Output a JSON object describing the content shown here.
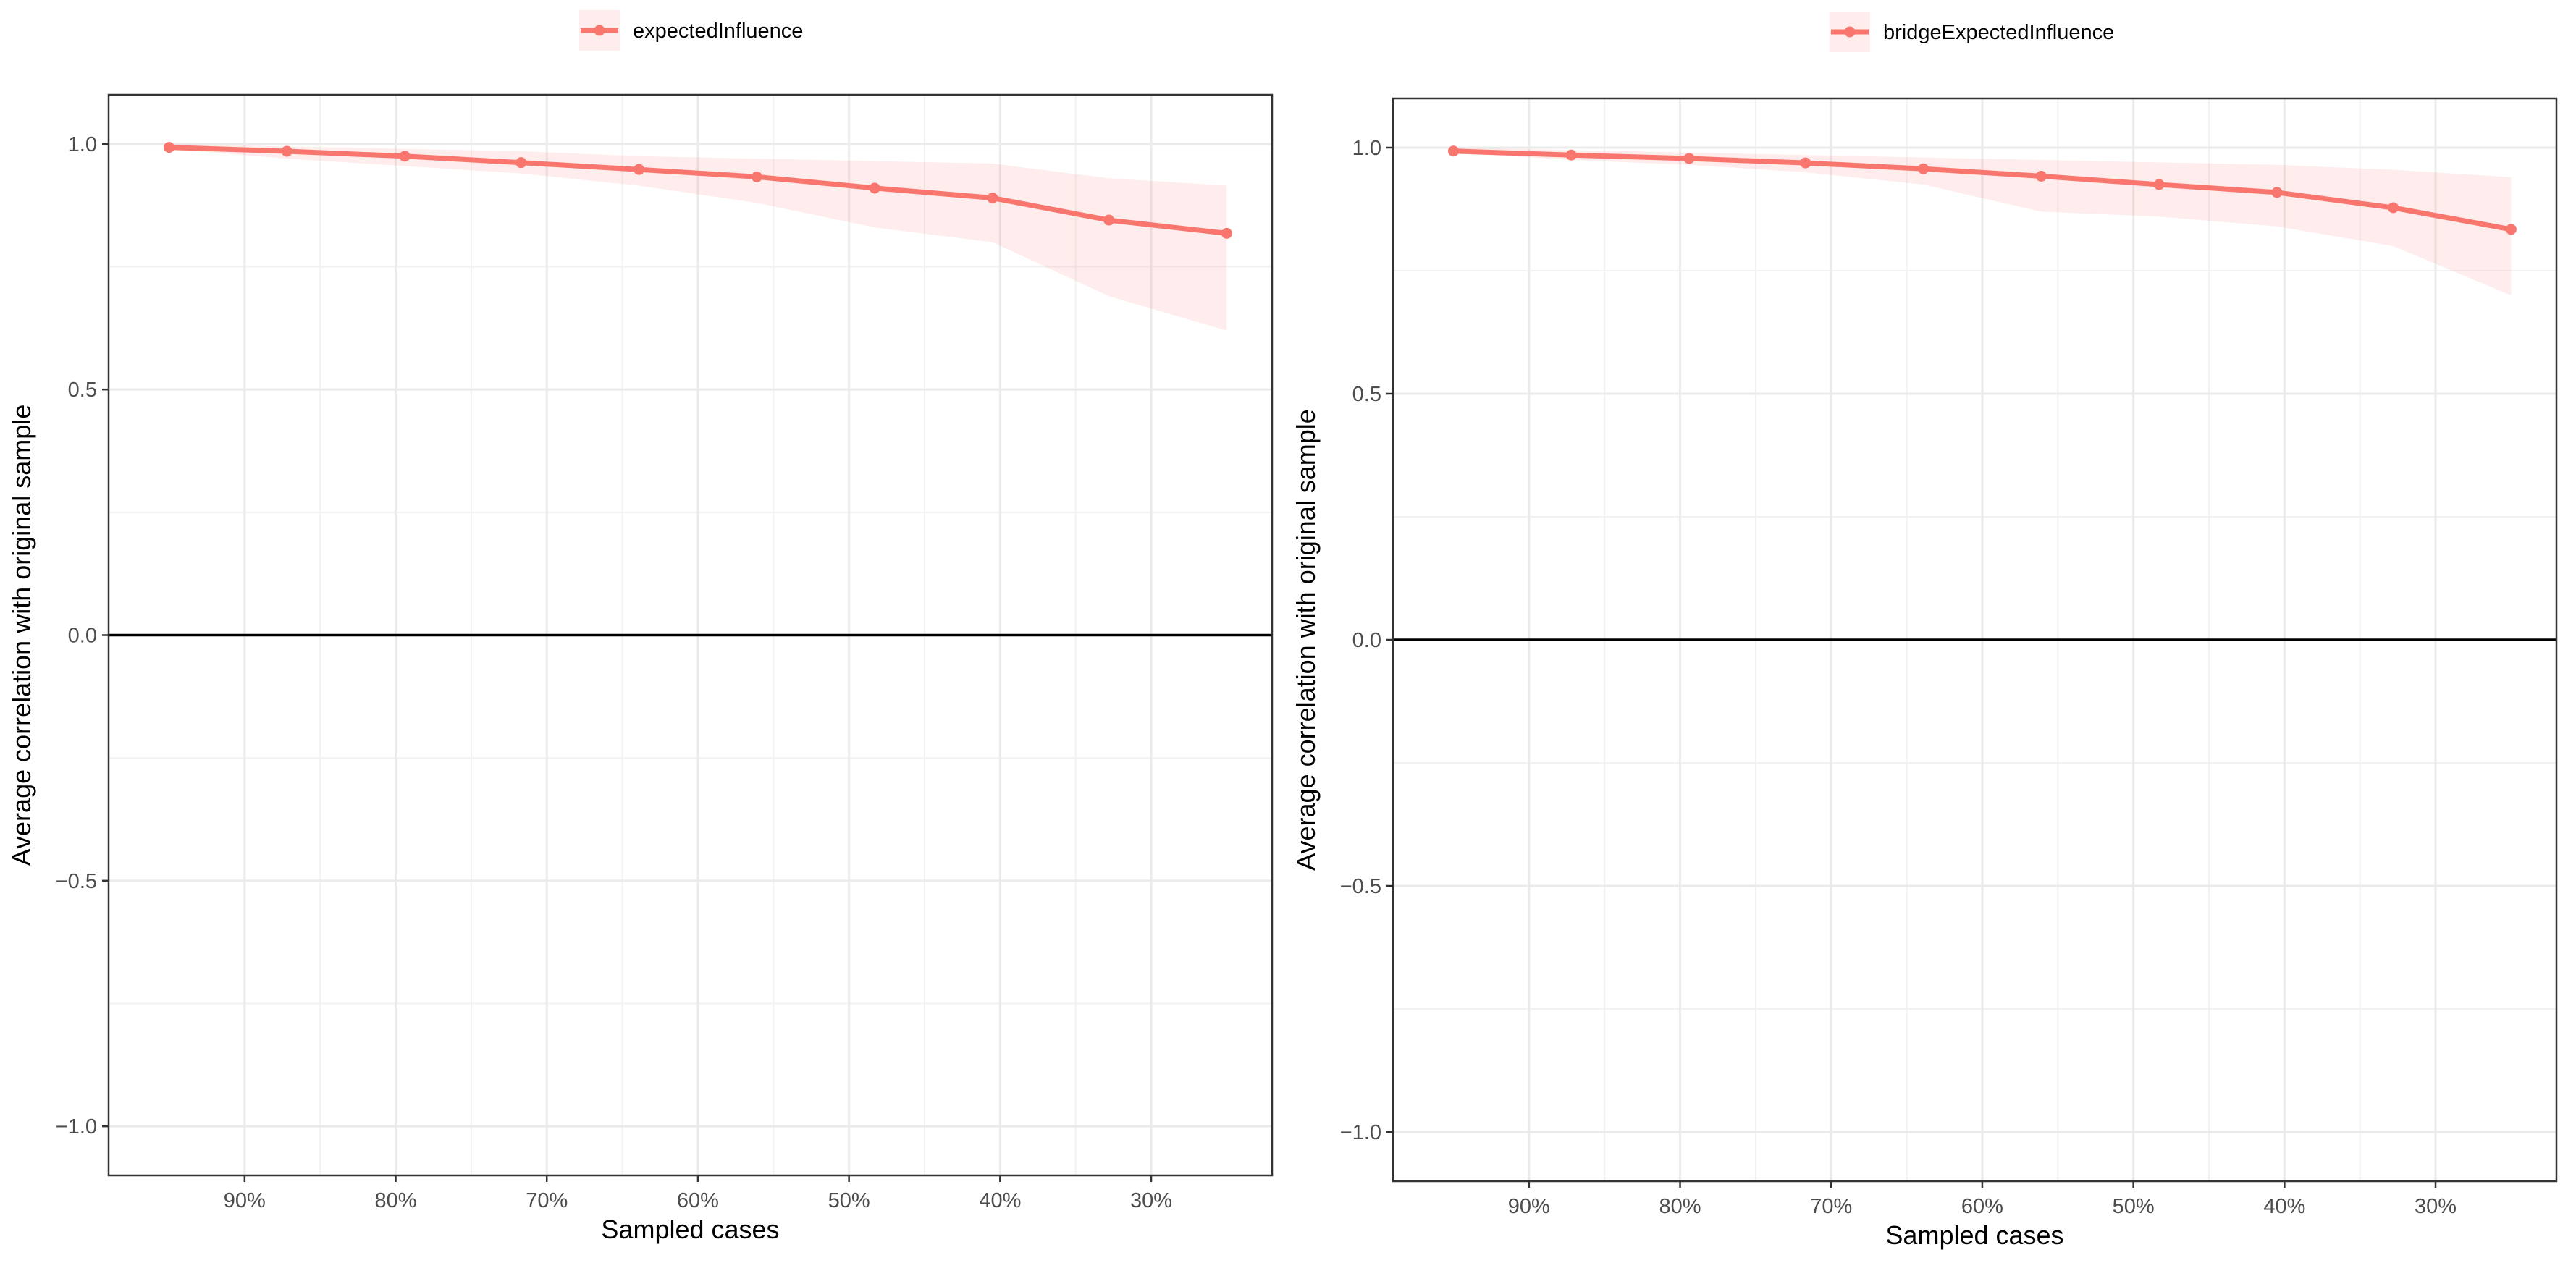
{
  "chart_data": [
    {
      "type": "line",
      "legend_position": "top",
      "xlabel": "Sampled cases",
      "ylabel": "Average correlation with original sample",
      "xlim": [
        0.22,
        0.99
      ],
      "ylim": [
        -1.1,
        1.1
      ],
      "x_reversed": true,
      "xticks": [
        0.9,
        0.8,
        0.7,
        0.6,
        0.5,
        0.4,
        0.3
      ],
      "xtick_labels": [
        "90%",
        "80%",
        "70%",
        "60%",
        "50%",
        "40%",
        "30%"
      ],
      "yticks": [
        -1.0,
        -0.5,
        0.0,
        0.5,
        1.0
      ],
      "ytick_labels": [
        "−1.0",
        "−0.5",
        "0.0",
        "0.5",
        "1.0"
      ],
      "grid": true,
      "reference_line_y": 0.0,
      "series": [
        {
          "name": "expectedInfluence",
          "color": "#f8766d",
          "x": [
            0.95,
            0.872,
            0.794,
            0.717,
            0.639,
            0.561,
            0.483,
            0.405,
            0.328,
            0.25
          ],
          "y": [
            0.993,
            0.985,
            0.975,
            0.962,
            0.948,
            0.933,
            0.91,
            0.89,
            0.845,
            0.818
          ],
          "band_lower": [
            0.99,
            0.97,
            0.955,
            0.94,
            0.915,
            0.88,
            0.83,
            0.8,
            0.69,
            0.62
          ],
          "band_upper": [
            1.0,
            0.995,
            0.99,
            0.985,
            0.975,
            0.97,
            0.965,
            0.96,
            0.93,
            0.915
          ]
        }
      ]
    },
    {
      "type": "line",
      "legend_position": "top",
      "xlabel": "Sampled cases",
      "ylabel": "Average correlation with original sample",
      "xlim": [
        0.22,
        0.99
      ],
      "ylim": [
        -1.1,
        1.1
      ],
      "x_reversed": true,
      "xticks": [
        0.9,
        0.8,
        0.7,
        0.6,
        0.5,
        0.4,
        0.3
      ],
      "xtick_labels": [
        "90%",
        "80%",
        "70%",
        "60%",
        "50%",
        "40%",
        "30%"
      ],
      "yticks": [
        -1.0,
        -0.5,
        0.0,
        0.5,
        1.0
      ],
      "ytick_labels": [
        "−1.0",
        "−0.5",
        "0.0",
        "0.5",
        "1.0"
      ],
      "grid": true,
      "reference_line_y": 0.0,
      "series": [
        {
          "name": "bridgeExpectedInfluence",
          "color": "#f8766d",
          "x": [
            0.95,
            0.872,
            0.794,
            0.717,
            0.639,
            0.561,
            0.483,
            0.405,
            0.328,
            0.25
          ],
          "y": [
            0.993,
            0.985,
            0.978,
            0.969,
            0.957,
            0.942,
            0.925,
            0.909,
            0.878,
            0.834
          ],
          "band_lower": [
            0.99,
            0.975,
            0.965,
            0.95,
            0.925,
            0.87,
            0.86,
            0.84,
            0.8,
            0.7
          ],
          "band_upper": [
            1.0,
            0.995,
            0.99,
            0.985,
            0.98,
            0.975,
            0.97,
            0.965,
            0.955,
            0.94
          ]
        }
      ]
    }
  ]
}
